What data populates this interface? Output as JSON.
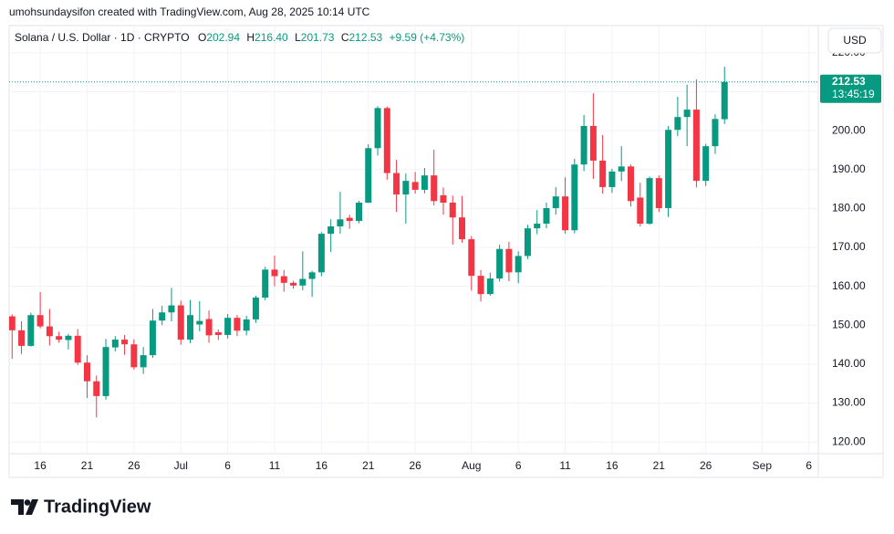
{
  "chart_data": {
    "type": "candlestick",
    "caption": "umohsundaysifon created with TradingView.com, Aug 28, 2025 10:14 UTC",
    "title": "Solana / U.S. Dollar · 1D · CRYPTO",
    "ohlc_names": [
      "O",
      "H",
      "L",
      "C"
    ],
    "last_labels": {
      "open": "202.94",
      "high": "216.40",
      "low": "201.73",
      "close": "212.53"
    },
    "change": "+9.59 (+4.73%)",
    "countdown": "13:45:19",
    "currency": "USD",
    "brand": "TradingView",
    "up_color": "#089981",
    "down_color": "#f23645",
    "grid": true,
    "x": [
      "2025-06-13",
      "2025-06-14",
      "2025-06-15",
      "2025-06-16",
      "2025-06-17",
      "2025-06-18",
      "2025-06-19",
      "2025-06-20",
      "2025-06-21",
      "2025-06-22",
      "2025-06-23",
      "2025-06-24",
      "2025-06-25",
      "2025-06-26",
      "2025-06-27",
      "2025-06-28",
      "2025-06-29",
      "2025-06-30",
      "2025-07-01",
      "2025-07-02",
      "2025-07-03",
      "2025-07-04",
      "2025-07-05",
      "2025-07-06",
      "2025-07-07",
      "2025-07-08",
      "2025-07-09",
      "2025-07-10",
      "2025-07-11",
      "2025-07-12",
      "2025-07-13",
      "2025-07-14",
      "2025-07-15",
      "2025-07-16",
      "2025-07-17",
      "2025-07-18",
      "2025-07-19",
      "2025-07-20",
      "2025-07-21",
      "2025-07-22",
      "2025-07-23",
      "2025-07-24",
      "2025-07-25",
      "2025-07-26",
      "2025-07-27",
      "2025-07-28",
      "2025-07-29",
      "2025-07-30",
      "2025-07-31",
      "2025-08-01",
      "2025-08-02",
      "2025-08-03",
      "2025-08-04",
      "2025-08-05",
      "2025-08-06",
      "2025-08-07",
      "2025-08-08",
      "2025-08-09",
      "2025-08-10",
      "2025-08-11",
      "2025-08-12",
      "2025-08-13",
      "2025-08-14",
      "2025-08-15",
      "2025-08-16",
      "2025-08-17",
      "2025-08-18",
      "2025-08-19",
      "2025-08-20",
      "2025-08-21",
      "2025-08-22",
      "2025-08-23",
      "2025-08-24",
      "2025-08-25",
      "2025-08-26",
      "2025-08-27",
      "2025-08-28"
    ],
    "open": [
      152.3,
      148.7,
      144.7,
      152.6,
      149.7,
      147.2,
      146.2,
      147.3,
      140.4,
      135.6,
      131.8,
      144.3,
      146.3,
      145.1,
      139.2,
      142.3,
      151.2,
      153.3,
      155.1,
      146.3,
      150.2,
      151.6,
      148.2,
      147.5,
      151.9,
      148.6,
      151.5,
      157.1,
      164.3,
      162.6,
      160.9,
      160.2,
      161.9,
      163.6,
      173.5,
      175.4,
      177.6,
      176.8,
      181.5,
      195.5,
      205.8,
      189.1,
      183.6,
      186.8,
      184.8,
      188.5,
      183.4,
      181.5,
      177.7,
      172.1,
      162.7,
      158,
      162,
      169.6,
      163.6,
      167.8,
      174.9,
      176.1,
      180.1,
      183.1,
      174.4,
      191.3,
      201.2,
      192.3,
      185.5,
      189.5,
      190.8,
      182.8,
      176.1,
      187.8,
      180.1,
      200.2,
      203.5,
      205.4,
      187.1,
      196,
      202.94
    ],
    "high": [
      152.8,
      151,
      153.2,
      158.5,
      154.2,
      148.3,
      147.8,
      149,
      142.3,
      137.1,
      146.5,
      147.2,
      147.5,
      146.4,
      144.4,
      154.2,
      155,
      159.6,
      156.3,
      156.5,
      156.2,
      153.8,
      148.9,
      152.9,
      152.6,
      152.4,
      157.6,
      165,
      167.9,
      164.2,
      161.4,
      169,
      164,
      173.9,
      177.2,
      184.3,
      178.4,
      182,
      196.5,
      206.3,
      206.2,
      192.5,
      189,
      189.4,
      190.4,
      195.1,
      185.4,
      183.3,
      183.2,
      172.9,
      164.2,
      163.5,
      170.7,
      171.4,
      169,
      175.8,
      179.6,
      181.5,
      185.5,
      188,
      192.8,
      204,
      209.6,
      198.9,
      190.2,
      196,
      191.3,
      186.6,
      188.2,
      188.5,
      201.2,
      208.7,
      211.8,
      213.2,
      196.6,
      204.2,
      216.4
    ],
    "low": [
      141.4,
      142.6,
      144.5,
      149.2,
      144.8,
      145.5,
      143.8,
      139.8,
      131.3,
      126.3,
      130.9,
      143.3,
      142.4,
      138.6,
      137.5,
      141.6,
      150,
      151,
      145,
      145.4,
      148.4,
      145.5,
      146.2,
      146.6,
      147.2,
      147.4,
      150.6,
      156.4,
      160,
      158.6,
      159.4,
      159,
      157.3,
      162.6,
      168.8,
      173.5,
      174.8,
      176.2,
      181.4,
      193.6,
      187.4,
      179.1,
      176.1,
      183.8,
      183.9,
      180.8,
      178.4,
      170.7,
      171.2,
      158.9,
      156.1,
      157.6,
      161.2,
      161.3,
      160.8,
      167,
      173.4,
      174.9,
      178.4,
      173.5,
      173.6,
      189.6,
      187.6,
      183.8,
      184,
      187,
      180.5,
      175.4,
      175.8,
      179.1,
      177.8,
      198.6,
      196,
      185.4,
      185.8,
      194,
      201.73
    ],
    "close": [
      148.7,
      144.7,
      152.6,
      149.7,
      147.2,
      146.3,
      147.3,
      140.4,
      135.6,
      131.8,
      144.4,
      146.3,
      145.1,
      139.2,
      142.3,
      151.2,
      153.3,
      155.1,
      146.3,
      152.6,
      151.1,
      147.4,
      147.5,
      151.9,
      148.6,
      151.5,
      157.1,
      164.3,
      162.6,
      160.9,
      160.2,
      161.9,
      163.6,
      173.5,
      175.4,
      177.2,
      176.8,
      181.5,
      195.5,
      205.8,
      189.1,
      183.6,
      187.1,
      184.8,
      188.5,
      181.9,
      181.5,
      177.7,
      172.1,
      162.7,
      158,
      162,
      169.6,
      163.6,
      167.8,
      174.9,
      176.1,
      180.1,
      183.1,
      174.4,
      191.3,
      201.2,
      192.3,
      185.5,
      189.5,
      190.8,
      181.9,
      176.1,
      187.8,
      180.1,
      200.2,
      203.5,
      205.4,
      187.1,
      196,
      203,
      212.53
    ],
    "xlim": [
      "2025-06-12",
      "2025-09-07"
    ],
    "xticks": [
      {
        "value": "2025-06-16",
        "label": "16"
      },
      {
        "value": "2025-06-21",
        "label": "21"
      },
      {
        "value": "2025-06-26",
        "label": "26"
      },
      {
        "value": "2025-07-01",
        "label": "Jul"
      },
      {
        "value": "2025-07-06",
        "label": "6"
      },
      {
        "value": "2025-07-11",
        "label": "11"
      },
      {
        "value": "2025-07-16",
        "label": "16"
      },
      {
        "value": "2025-07-21",
        "label": "21"
      },
      {
        "value": "2025-07-26",
        "label": "26"
      },
      {
        "value": "2025-08-01",
        "label": "Aug"
      },
      {
        "value": "2025-08-06",
        "label": "6"
      },
      {
        "value": "2025-08-11",
        "label": "11"
      },
      {
        "value": "2025-08-16",
        "label": "16"
      },
      {
        "value": "2025-08-21",
        "label": "21"
      },
      {
        "value": "2025-08-26",
        "label": "26"
      },
      {
        "value": "2025-09-01",
        "label": "Sep"
      },
      {
        "value": "2025-09-06",
        "label": "6"
      }
    ],
    "ylim": [
      117,
      227
    ],
    "yticks": [
      {
        "value": 120,
        "label": "120.00"
      },
      {
        "value": 130,
        "label": "130.00"
      },
      {
        "value": 140,
        "label": "140.00"
      },
      {
        "value": 150,
        "label": "150.00"
      },
      {
        "value": 160,
        "label": "160.00"
      },
      {
        "value": 170,
        "label": "170.00"
      },
      {
        "value": 180,
        "label": "180.00"
      },
      {
        "value": 190,
        "label": "190.00"
      },
      {
        "value": 200,
        "label": "200.00"
      },
      {
        "value": 210,
        "label": "210.00"
      },
      {
        "value": 220,
        "label": "220.00"
      }
    ]
  }
}
